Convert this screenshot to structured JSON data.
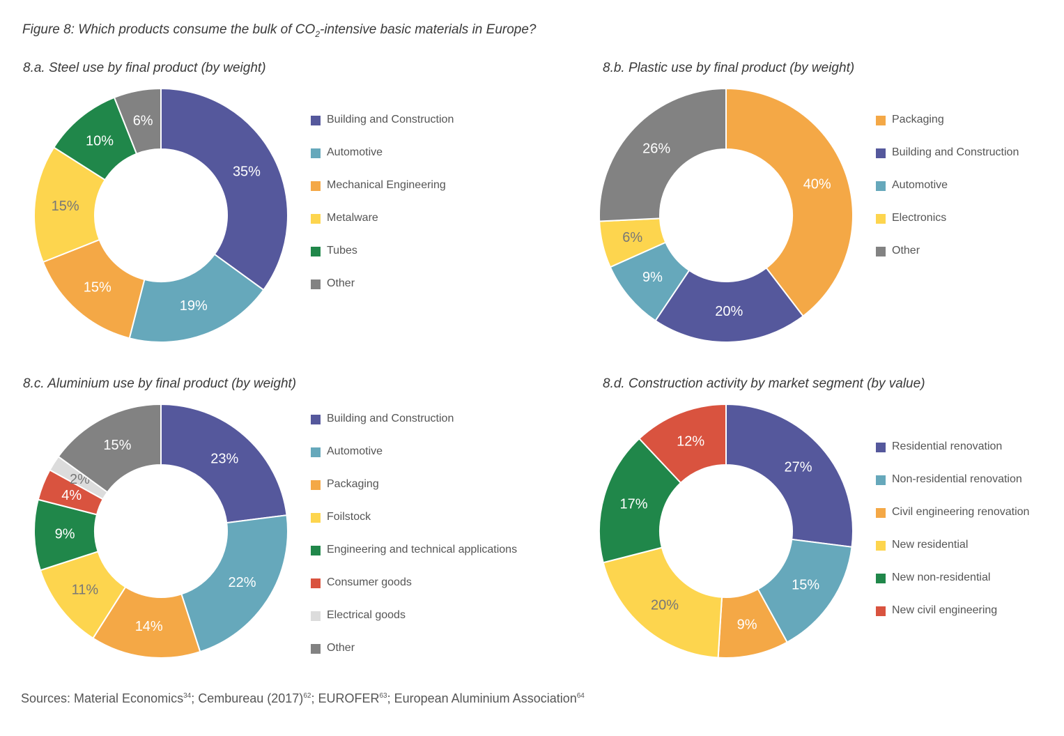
{
  "figure": {
    "title_prefix": "Figure 8: Which products consume the bulk of CO",
    "title_sub": "2",
    "title_suffix": "-intensive basic materials in Europe?"
  },
  "colors": {
    "purple": "#55589c",
    "teal": "#66a8bb",
    "orange": "#f4a846",
    "yellow": "#fdd54e",
    "green": "#20874a",
    "red": "#d9533f",
    "lightgray": "#dcdcdc",
    "gray": "#828282"
  },
  "chart_data": [
    {
      "type": "pie",
      "id": "steel",
      "title": "8.a. Steel use by final product (by weight)",
      "labels": [
        "Building and Construction",
        "Automotive",
        "Mechanical Engineering",
        "Metalware",
        "Tubes",
        "Other"
      ],
      "values": [
        35,
        19,
        15,
        15,
        10,
        6
      ],
      "value_labels": [
        "35%",
        "19%",
        "15%",
        "15%",
        "10%",
        "6%"
      ],
      "colors": [
        "#55589c",
        "#66a8bb",
        "#f4a846",
        "#fdd54e",
        "#20874a",
        "#828282"
      ],
      "label_colors": [
        "#ffffff",
        "#ffffff",
        "#ffffff",
        "#777777",
        "#ffffff",
        "#ffffff"
      ],
      "legend_order": [
        0,
        1,
        2,
        3,
        4,
        5
      ],
      "legend_offset": 0
    },
    {
      "type": "pie",
      "id": "plastic",
      "title": "8.b. Plastic use by final product (by weight)",
      "labels": [
        "Packaging",
        "Building and Construction",
        "Automotive",
        "Electronics",
        "Other"
      ],
      "values": [
        40,
        20,
        9,
        6,
        26
      ],
      "value_labels": [
        "40%",
        "20%",
        "9%",
        "6%",
        "26%"
      ],
      "colors": [
        "#f4a846",
        "#55589c",
        "#66a8bb",
        "#fdd54e",
        "#828282"
      ],
      "label_colors": [
        "#ffffff",
        "#ffffff",
        "#ffffff",
        "#777777",
        "#ffffff"
      ],
      "legend_order": [
        0,
        1,
        2,
        3,
        4
      ],
      "legend_offset": 0
    },
    {
      "type": "pie",
      "id": "aluminium",
      "title": "8.c. Aluminium use by final product (by weight)",
      "labels": [
        "Building and Construction",
        "Automotive",
        "Packaging",
        "Foilstock",
        "Engineering and technical applications",
        "Consumer goods",
        "Electrical goods",
        "Other"
      ],
      "values": [
        23,
        22,
        14,
        11,
        9,
        4,
        2,
        15
      ],
      "value_labels": [
        "23%",
        "22%",
        "14%",
        "11%",
        "9%",
        "4%",
        "2%",
        "15%"
      ],
      "colors": [
        "#55589c",
        "#66a8bb",
        "#f4a846",
        "#fdd54e",
        "#20874a",
        "#d9533f",
        "#dcdcdc",
        "#828282"
      ],
      "label_colors": [
        "#ffffff",
        "#ffffff",
        "#ffffff",
        "#777777",
        "#ffffff",
        "#ffffff",
        "#777777",
        "#ffffff"
      ],
      "legend_order": [
        0,
        1,
        2,
        3,
        4,
        5,
        6,
        7
      ],
      "legend_offset": 0
    },
    {
      "type": "pie",
      "id": "construction",
      "title": "8.d. Construction activity by market segment (by value)",
      "labels": [
        "Residential renovation",
        "Non-residential renovation",
        "Civil engineering renovation",
        "New residential",
        "New non-residential",
        "New civil engineering"
      ],
      "values": [
        27,
        15,
        9,
        20,
        17,
        12
      ],
      "value_labels": [
        "27%",
        "15%",
        "9%",
        "20%",
        "17%",
        "12%"
      ],
      "colors": [
        "#55589c",
        "#66a8bb",
        "#f4a846",
        "#fdd54e",
        "#20874a",
        "#d9533f"
      ],
      "label_colors": [
        "#ffffff",
        "#ffffff",
        "#ffffff",
        "#777777",
        "#ffffff",
        "#ffffff"
      ],
      "legend_order": [
        0,
        1,
        2,
        3,
        4,
        5
      ],
      "legend_offset": 40
    }
  ],
  "sources": {
    "parts": [
      {
        "text": "Sources: Material Economics",
        "sup": "34"
      },
      {
        "text": "; Cembureau (2017)",
        "sup": "62"
      },
      {
        "text": "; EUROFER",
        "sup": "63"
      },
      {
        "text": "; European Aluminium Association",
        "sup": "64"
      }
    ]
  }
}
